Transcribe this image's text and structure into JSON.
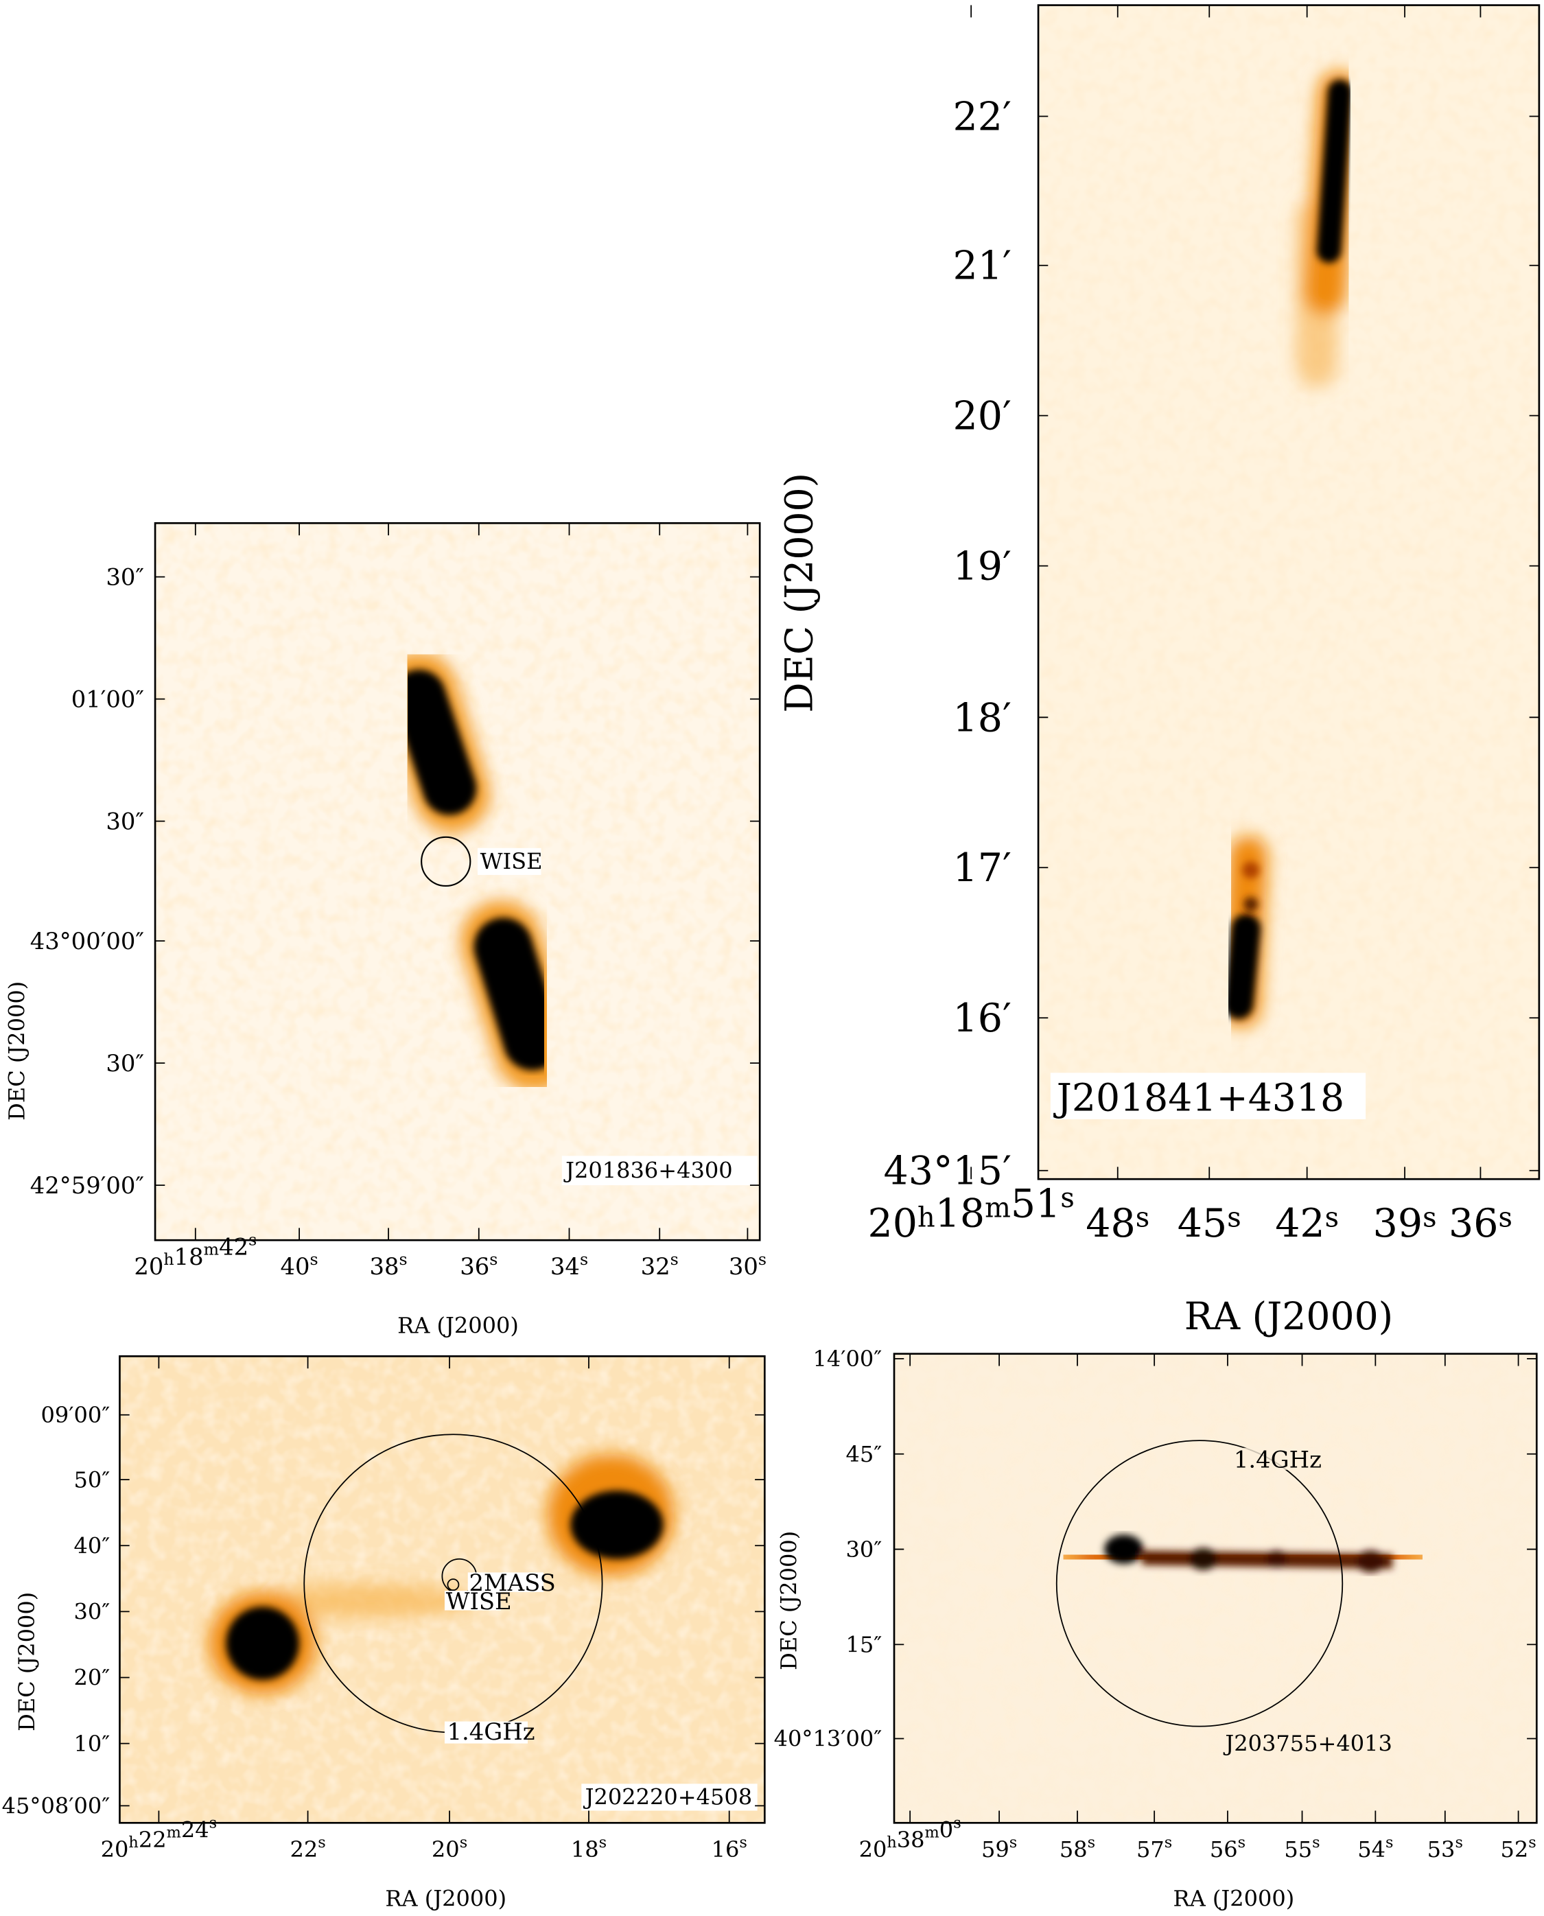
{
  "panels": [
    {
      "id": "J201836+4300",
      "source_label": "J201836+4300",
      "xlabel": "RA (J2000)",
      "ylabel": "DEC (J2000)",
      "yticks": [
        "30″",
        "01′00″",
        "30″",
        "43°00′00″",
        "30″",
        "42°59′00″"
      ],
      "xticks": [
        "20h18m42s",
        "40s",
        "38s",
        "36s",
        "34s",
        "32s",
        "30s"
      ],
      "annotations": [
        "WISE"
      ]
    },
    {
      "id": "J201841+4318",
      "source_label": "J201841+4318",
      "xlabel": "RA (J2000)",
      "ylabel": "DEC (J2000)",
      "yticks": [
        "22′",
        "21′",
        "20′",
        "19′",
        "18′",
        "17′",
        "16′",
        "43°15′"
      ],
      "xticks": [
        "20h18m51s",
        "48s",
        "45s",
        "42s",
        "39s",
        "36s"
      ],
      "annotations": []
    },
    {
      "id": "J202220+4508",
      "source_label": "J202220+4508",
      "xlabel": "RA (J2000)",
      "ylabel": "DEC (J2000)",
      "yticks": [
        "09′00″",
        "50″",
        "40″",
        "30″",
        "20″",
        "10″",
        "45°08′00″"
      ],
      "xticks": [
        "20h22m24s",
        "22s",
        "20s",
        "18s",
        "16s"
      ],
      "annotations": [
        "2MASS",
        "WISE",
        "1.4GHz"
      ]
    },
    {
      "id": "J203755+4013",
      "source_label": "J203755+4013",
      "xlabel": "RA (J2000)",
      "ylabel": "DEC (J2000)",
      "yticks": [
        "14′00″",
        "45″",
        "30″",
        "15″",
        "40°13′00″"
      ],
      "xticks": [
        "20h38m0s",
        "59s",
        "58s",
        "57s",
        "56s",
        "55s",
        "54s",
        "53s",
        "52s"
      ],
      "annotations": [
        "1.4GHz"
      ]
    }
  ],
  "colors": {
    "background_light": "#fde9c8",
    "mid": "#f7a531",
    "core": "#000000"
  }
}
